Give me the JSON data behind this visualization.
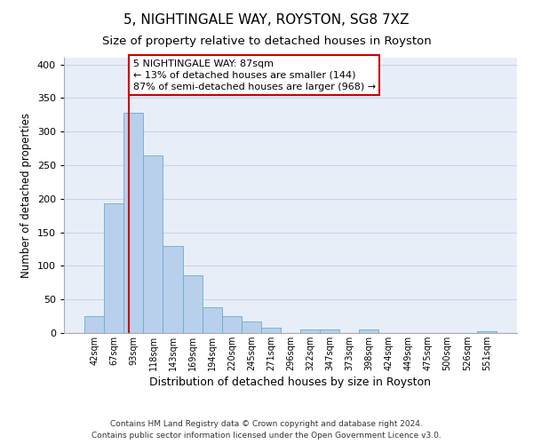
{
  "title": "5, NIGHTINGALE WAY, ROYSTON, SG8 7XZ",
  "subtitle": "Size of property relative to detached houses in Royston",
  "xlabel": "Distribution of detached houses by size in Royston",
  "ylabel": "Number of detached properties",
  "bar_labels": [
    "42sqm",
    "67sqm",
    "93sqm",
    "118sqm",
    "143sqm",
    "169sqm",
    "194sqm",
    "220sqm",
    "245sqm",
    "271sqm",
    "296sqm",
    "322sqm",
    "347sqm",
    "373sqm",
    "398sqm",
    "424sqm",
    "449sqm",
    "475sqm",
    "500sqm",
    "526sqm",
    "551sqm"
  ],
  "bar_values": [
    25,
    193,
    328,
    265,
    130,
    86,
    38,
    25,
    17,
    8,
    0,
    5,
    5,
    0,
    5,
    0,
    0,
    0,
    0,
    0,
    3
  ],
  "bar_color": "#b8d0eb",
  "bar_edge_color": "#6aaad4",
  "bar_width": 1.0,
  "ylim": [
    0,
    410
  ],
  "yticks": [
    0,
    50,
    100,
    150,
    200,
    250,
    300,
    350,
    400
  ],
  "vline_color": "#cc0000",
  "annotation_line1": "5 NIGHTINGALE WAY: 87sqm",
  "annotation_line2": "← 13% of detached houses are smaller (144)",
  "annotation_line3": "87% of semi-detached houses are larger (968) →",
  "annotation_box_edgecolor": "#cc0000",
  "annotation_box_facecolor": "white",
  "annotation_fontsize": 8.0,
  "grid_color": "#c8d4e8",
  "bg_color": "#e8eef8",
  "footer_line1": "Contains HM Land Registry data © Crown copyright and database right 2024.",
  "footer_line2": "Contains public sector information licensed under the Open Government Licence v3.0.",
  "title_fontsize": 11,
  "subtitle_fontsize": 9.5,
  "xlabel_fontsize": 9,
  "ylabel_fontsize": 8.5
}
